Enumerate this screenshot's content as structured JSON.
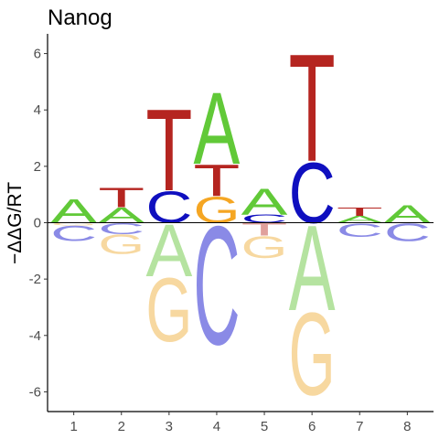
{
  "chart_data": {
    "type": "sequence-logo",
    "title": "Nanog",
    "ylabel": "−ΔΔG/RT",
    "xlabel": "",
    "ylim": [
      -6.7,
      6.7
    ],
    "yticks": [
      -6,
      -4,
      -2,
      0,
      2,
      4,
      6
    ],
    "xticks": [
      1,
      2,
      3,
      4,
      5,
      6,
      7,
      8
    ],
    "grid": false,
    "colors": {
      "A": "#61c938",
      "C": "#0f0fbf",
      "G": "#f5a623",
      "T": "#b52520",
      "A_neg": "#b5e3a0",
      "C_neg": "#8a8ae6",
      "G_neg": "#f7d8a0",
      "T_neg": "#e0a09c"
    },
    "positions": [
      {
        "pos": 1,
        "positive": [
          {
            "base": "A",
            "value": 0.85
          }
        ],
        "negative": [
          {
            "base": "G",
            "value": -0.1
          },
          {
            "base": "C",
            "value": -0.55
          }
        ]
      },
      {
        "pos": 2,
        "positive": [
          {
            "base": "A",
            "value": 0.55
          },
          {
            "base": "T",
            "value": 0.7
          }
        ],
        "negative": [
          {
            "base": "C",
            "value": -0.4
          },
          {
            "base": "G",
            "value": -0.7
          }
        ]
      },
      {
        "pos": 3,
        "positive": [
          {
            "base": "C",
            "value": 1.15
          },
          {
            "base": "T",
            "value": 2.95
          }
        ],
        "negative": [
          {
            "base": "A",
            "value": -1.9
          },
          {
            "base": "G",
            "value": -2.3
          }
        ]
      },
      {
        "pos": 4,
        "positive": [
          {
            "base": "G",
            "value": 0.95
          },
          {
            "base": "T",
            "value": 1.15
          },
          {
            "base": "A",
            "value": 2.6
          }
        ],
        "negative": [
          {
            "base": "C",
            "value": -4.3
          }
        ]
      },
      {
        "pos": 5,
        "positive": [
          {
            "base": "C",
            "value": 0.3
          },
          {
            "base": "A",
            "value": 0.95
          }
        ],
        "negative": [
          {
            "base": "T",
            "value": -0.45
          },
          {
            "base": "G",
            "value": -0.8
          }
        ]
      },
      {
        "pos": 6,
        "positive": [
          {
            "base": "C",
            "value": 2.2
          },
          {
            "base": "T",
            "value": 3.9
          }
        ],
        "negative": [
          {
            "base": "A",
            "value": -3.1
          },
          {
            "base": "G",
            "value": -3.0
          }
        ]
      },
      {
        "pos": 7,
        "positive": [
          {
            "base": "A",
            "value": 0.25
          },
          {
            "base": "T",
            "value": 0.3
          }
        ],
        "negative": [
          {
            "base": "C",
            "value": -0.5
          }
        ]
      },
      {
        "pos": 8,
        "positive": [
          {
            "base": "A",
            "value": 0.65
          }
        ],
        "negative": [
          {
            "base": "C",
            "value": -0.65
          }
        ]
      }
    ]
  }
}
